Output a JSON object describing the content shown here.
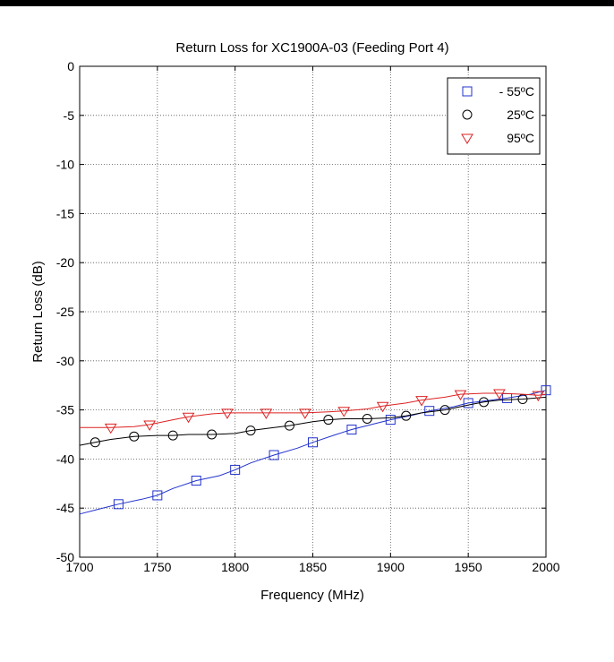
{
  "chart_data": {
    "type": "line",
    "title": "Return Loss for XC1900A-03 (Feeding Port 4)",
    "xlabel": "Frequency (MHz)",
    "ylabel": "Return Loss (dB)",
    "xlim": [
      1700,
      2000
    ],
    "ylim": [
      -50,
      0
    ],
    "x_ticks": [
      1700,
      1750,
      1800,
      1850,
      1900,
      1950,
      2000
    ],
    "y_ticks": [
      0,
      -5,
      -10,
      -15,
      -20,
      -25,
      -30,
      -35,
      -40,
      -45,
      -50
    ],
    "grid": true,
    "legend_position": "top-right",
    "series": [
      {
        "name": "- 55ºC",
        "color": "#2233cc",
        "marker": "square",
        "line_x": [
          1700,
          1710,
          1725,
          1740,
          1750,
          1760,
          1775,
          1790,
          1800,
          1810,
          1825,
          1840,
          1850,
          1865,
          1875,
          1890,
          1900,
          1915,
          1925,
          1940,
          1950,
          1965,
          1975,
          1990,
          2000
        ],
        "line_y": [
          -45.6,
          -45.2,
          -44.6,
          -44.1,
          -43.7,
          -43.0,
          -42.2,
          -41.7,
          -41.1,
          -40.4,
          -39.6,
          -38.9,
          -38.3,
          -37.5,
          -37.0,
          -36.4,
          -36.0,
          -35.5,
          -35.1,
          -34.7,
          -34.3,
          -34.0,
          -33.8,
          -33.4,
          -33.0
        ],
        "markers_x": [
          1725,
          1750,
          1775,
          1800,
          1825,
          1850,
          1875,
          1900,
          1925,
          1950,
          1975,
          2000
        ],
        "markers_y": [
          -44.6,
          -43.7,
          -42.2,
          -41.1,
          -39.6,
          -38.3,
          -37.0,
          -36.0,
          -35.1,
          -34.3,
          -33.8,
          -33.0
        ]
      },
      {
        "name": "25ºC",
        "color": "#000000",
        "marker": "circle",
        "line_x": [
          1700,
          1710,
          1720,
          1735,
          1750,
          1760,
          1770,
          1785,
          1800,
          1810,
          1820,
          1835,
          1850,
          1860,
          1870,
          1885,
          1900,
          1910,
          1920,
          1935,
          1950,
          1960,
          1970,
          1985,
          2000
        ],
        "line_y": [
          -38.6,
          -38.3,
          -38.0,
          -37.7,
          -37.6,
          -37.6,
          -37.5,
          -37.5,
          -37.4,
          -37.1,
          -36.9,
          -36.6,
          -36.2,
          -36.0,
          -35.9,
          -35.9,
          -35.8,
          -35.6,
          -35.3,
          -35.0,
          -34.5,
          -34.2,
          -34.0,
          -33.9,
          -33.7
        ],
        "markers_x": [
          1710,
          1735,
          1760,
          1785,
          1810,
          1835,
          1860,
          1885,
          1910,
          1935,
          1960,
          1985
        ],
        "markers_y": [
          -38.3,
          -37.7,
          -37.6,
          -37.5,
          -37.1,
          -36.6,
          -36.0,
          -35.9,
          -35.6,
          -35.0,
          -34.2,
          -33.9
        ]
      },
      {
        "name": "95ºC",
        "color": "#dd2222",
        "marker": "triangle-down",
        "line_x": [
          1700,
          1720,
          1735,
          1745,
          1760,
          1770,
          1785,
          1795,
          1810,
          1820,
          1835,
          1845,
          1860,
          1870,
          1885,
          1895,
          1910,
          1920,
          1935,
          1945,
          1960,
          1970,
          1985,
          1995,
          2000
        ],
        "line_y": [
          -36.8,
          -36.8,
          -36.7,
          -36.5,
          -36.0,
          -35.7,
          -35.4,
          -35.3,
          -35.3,
          -35.3,
          -35.3,
          -35.3,
          -35.2,
          -35.1,
          -34.9,
          -34.6,
          -34.3,
          -34.0,
          -33.7,
          -33.4,
          -33.3,
          -33.3,
          -33.4,
          -33.5,
          -33.4
        ],
        "markers_x": [
          1720,
          1745,
          1770,
          1795,
          1820,
          1845,
          1870,
          1895,
          1920,
          1945,
          1970,
          1995
        ],
        "markers_y": [
          -36.8,
          -36.5,
          -35.7,
          -35.3,
          -35.3,
          -35.3,
          -35.1,
          -34.6,
          -34.0,
          -33.4,
          -33.3,
          -33.5
        ]
      }
    ]
  }
}
